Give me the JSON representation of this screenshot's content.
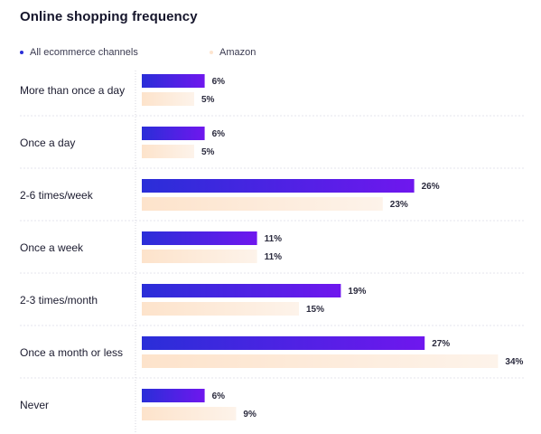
{
  "chart_data": {
    "type": "bar",
    "orientation": "horizontal",
    "title": "Online shopping frequency",
    "xlabel": "",
    "ylabel": "",
    "xlim": [
      0,
      34
    ],
    "grid": false,
    "legend_position": "top-left",
    "categories": [
      "More than once a day",
      "Once a day",
      "2-6 times/week",
      "Once a week",
      "2-3 times/month",
      "Once a month or less",
      "Never"
    ],
    "series": [
      {
        "name": "All ecommerce channels",
        "color": "#6a1bea",
        "values": [
          6,
          6,
          26,
          11,
          19,
          27,
          6
        ],
        "labels": [
          "6%",
          "6%",
          "26%",
          "11%",
          "19%",
          "27%",
          "6%"
        ]
      },
      {
        "name": "Amazon",
        "color": "#fde5cf",
        "values": [
          5,
          5,
          23,
          11,
          15,
          34,
          9
        ],
        "labels": [
          "5%",
          "5%",
          "23%",
          "11%",
          "15%",
          "34%",
          "9%"
        ]
      }
    ],
    "colors": {
      "bar1_start": "#2a2ed8",
      "bar1_end": "#6f17ee",
      "bar2_start": "#fde3cb",
      "bar2_end": "#fdf3ea",
      "separator": "#e6e6ee",
      "axis": "#d6d6de"
    }
  }
}
